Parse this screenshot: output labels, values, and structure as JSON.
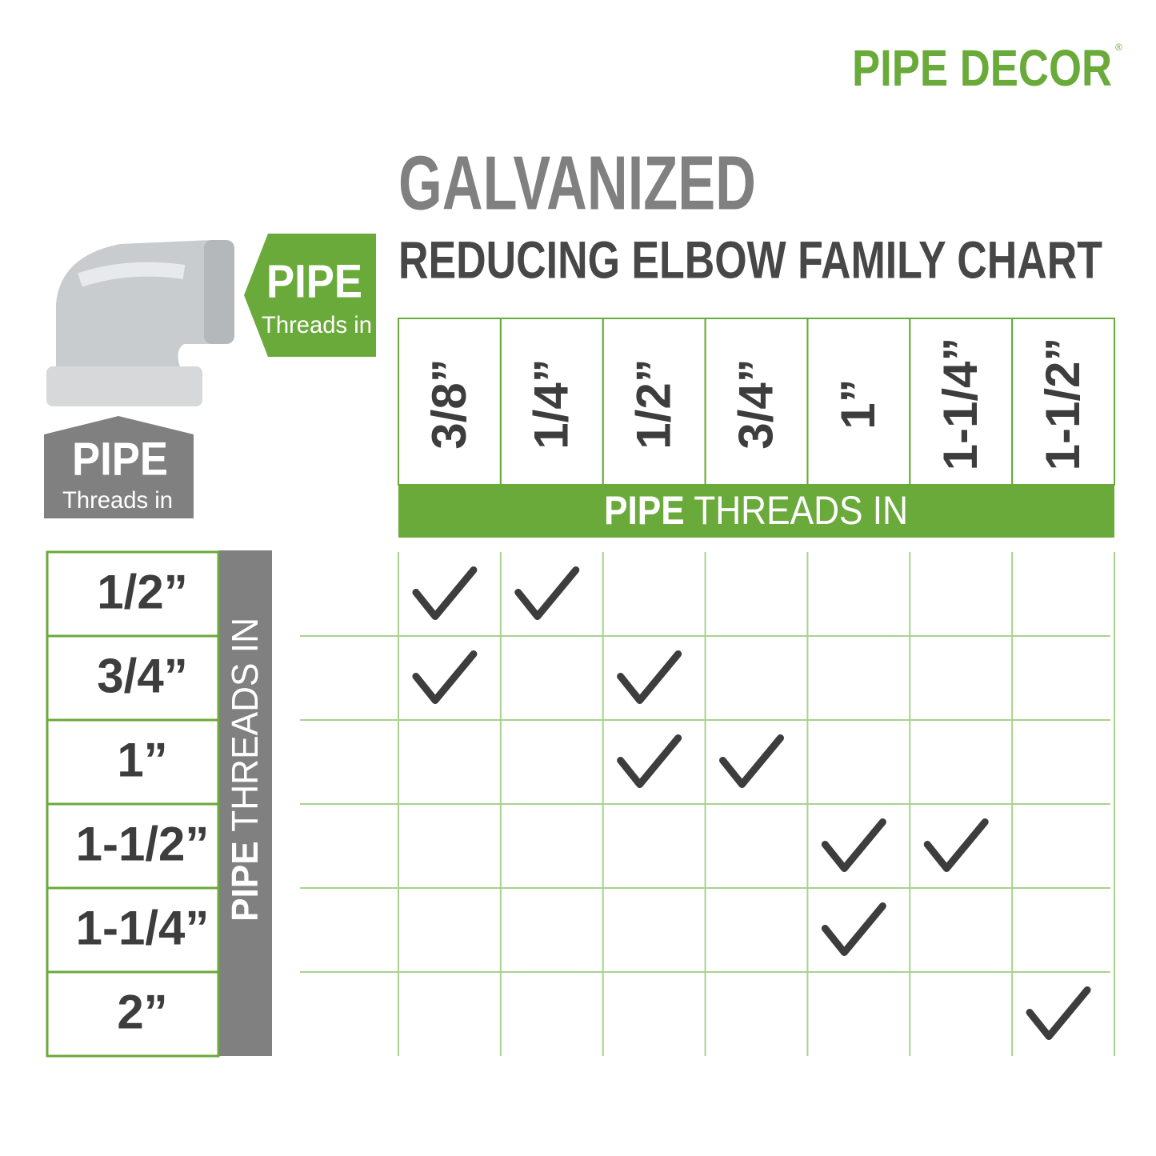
{
  "brand": {
    "name": "PIPE DECOR",
    "mark": "®"
  },
  "header": {
    "title": "GALVANIZED",
    "subtitle": "REDUCING ELBOW FAMILY CHART"
  },
  "badges": {
    "outlet": {
      "word": "PIPE",
      "sub": "Threads in"
    },
    "run": {
      "word": "PIPE",
      "sub": "Threads in"
    }
  },
  "table": {
    "column_heading": {
      "bold": "PIPE",
      "rest": "THREADS IN"
    },
    "row_heading": {
      "bold": "PIPE",
      "rest": "THREADS IN"
    },
    "columns": [
      "3/8”",
      "1/4”",
      "1/2”",
      "3/4”",
      "1”",
      "1-1/4”",
      "1-1/2”"
    ],
    "rows": [
      {
        "label": "1/2”",
        "checks": [
          true,
          true,
          false,
          false,
          false,
          false,
          false
        ]
      },
      {
        "label": "3/4”",
        "checks": [
          true,
          false,
          true,
          false,
          false,
          false,
          false
        ]
      },
      {
        "label": "1”",
        "checks": [
          false,
          false,
          true,
          true,
          false,
          false,
          false
        ]
      },
      {
        "label": "1-1/2”",
        "checks": [
          false,
          false,
          false,
          false,
          true,
          true,
          false
        ]
      },
      {
        "label": "1-1/4”",
        "checks": [
          false,
          false,
          false,
          false,
          true,
          false,
          false
        ]
      },
      {
        "label": "2”",
        "checks": [
          false,
          false,
          false,
          false,
          false,
          false,
          true
        ]
      }
    ]
  }
}
